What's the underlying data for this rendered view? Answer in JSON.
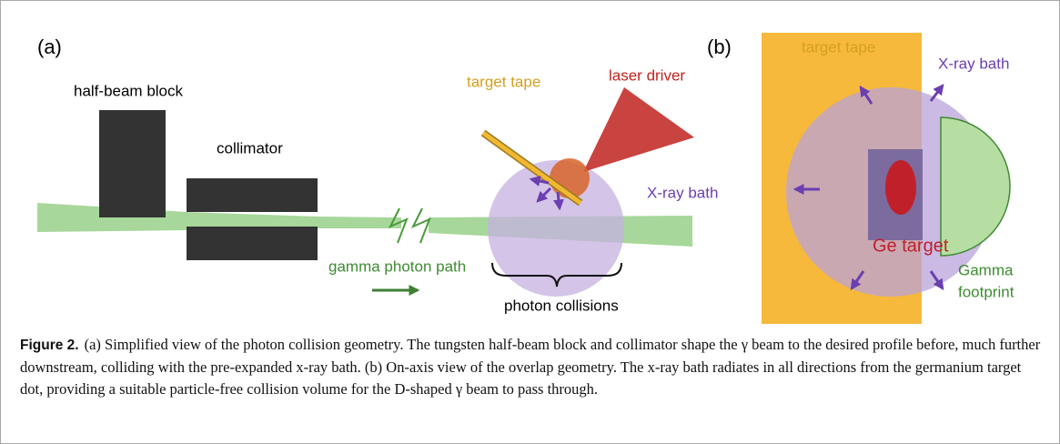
{
  "panel_a": {
    "tag": "(a)",
    "half_beam_block": "half-beam block",
    "collimator": "collimator",
    "target_tape": "target tape",
    "laser_driver": "laser driver",
    "xray_bath": "X-ray bath",
    "gamma_path": "gamma photon path",
    "photon_collisions": "photon collisions"
  },
  "panel_b": {
    "tag": "(b)",
    "target_tape": "target tape",
    "xray_bath": "X-ray bath",
    "ge_target": "Ge target",
    "gamma_footprint": [
      "Gamma",
      "footprint"
    ]
  },
  "caption": {
    "label": "Figure 2.",
    "text": "(a) Simplified view of the photon collision geometry. The tungsten half-beam block and collimator shape the γ beam to the desired profile before, much further downstream, colliding with the pre-expanded x-ray bath. (b) On-axis view of the overlap geometry. The x-ray bath radiates in all directions from the germanium target dot, providing a suitable particle-free collision volume for the D-shaped γ beam to pass through."
  }
}
